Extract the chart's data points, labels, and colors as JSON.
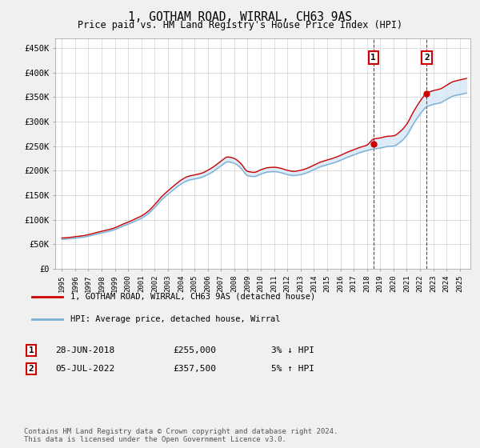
{
  "title": "1, GOTHAM ROAD, WIRRAL, CH63 9AS",
  "subtitle": "Price paid vs. HM Land Registry's House Price Index (HPI)",
  "ylabel_ticks": [
    "£0",
    "£50K",
    "£100K",
    "£150K",
    "£200K",
    "£250K",
    "£300K",
    "£350K",
    "£400K",
    "£450K"
  ],
  "ytick_values": [
    0,
    50000,
    100000,
    150000,
    200000,
    250000,
    300000,
    350000,
    400000,
    450000
  ],
  "ylim": [
    0,
    470000
  ],
  "xlim_start": 1994.5,
  "xlim_end": 2025.8,
  "sale1_date": 2018.49,
  "sale1_price": 255000,
  "sale2_date": 2022.51,
  "sale2_price": 357500,
  "line_color_house": "#cc0000",
  "line_color_hpi": "#7bafd4",
  "fill_color": "#d6e8f7",
  "vline_color": "#cc0000",
  "footnote": "Contains HM Land Registry data © Crown copyright and database right 2024.\nThis data is licensed under the Open Government Licence v3.0.",
  "legend1": "1, GOTHAM ROAD, WIRRAL, CH63 9AS (detached house)",
  "legend2": "HPI: Average price, detached house, Wirral",
  "background_color": "#f0f0f0",
  "plot_bg_color": "#ffffff",
  "box_color": "#cc0000"
}
